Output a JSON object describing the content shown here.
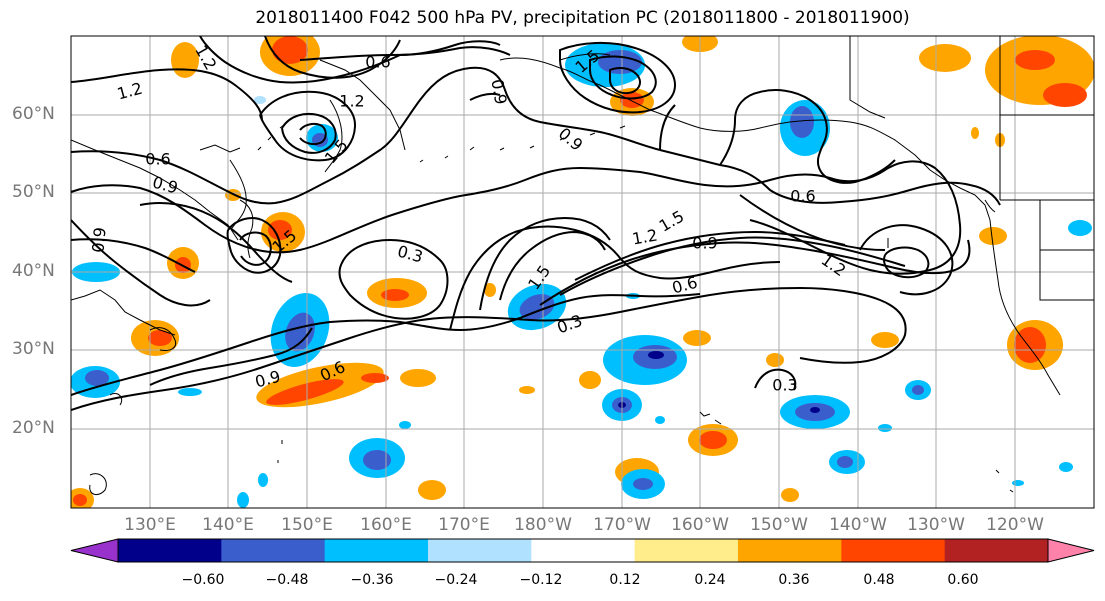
{
  "title": "2018011400 F042 500 hPa PV, precipitation PC (2018011800 - 2018011900)",
  "lat_labels": [
    "60°N",
    "50°N",
    "40°N",
    "30°N",
    "20°N"
  ],
  "lon_labels": [
    "130°E",
    "140°E",
    "150°E",
    "160°E",
    "170°E",
    "180°W",
    "170°W",
    "160°W",
    "150°W",
    "140°W",
    "130°W",
    "120°W"
  ],
  "colorbar": {
    "labels": [
      "−0.60",
      "−0.48",
      "−0.36",
      "−0.24",
      "−0.12",
      "0.12",
      "0.24",
      "0.36",
      "0.48",
      "0.60"
    ],
    "colors": [
      "#9932cc",
      "#00008b",
      "#3a5fcd",
      "#00bfff",
      "#b0e2ff",
      "#ffffff",
      "#ffec8b",
      "#ffa500",
      "#ff4500",
      "#b22222",
      "#ff82ab"
    ]
  },
  "contour_labels": [
    "1.2",
    "0.6",
    "1.2",
    "1.2",
    "0.9",
    "0.9",
    "1.5",
    "1.5",
    "0.6",
    "0.9",
    "0.9",
    "0.3",
    "1.5",
    "1.2",
    "0.9",
    "1.5",
    "0.6",
    "1.2",
    "0.3",
    "0.9",
    "0.6",
    "0.3",
    "0.6",
    "1.5"
  ]
}
